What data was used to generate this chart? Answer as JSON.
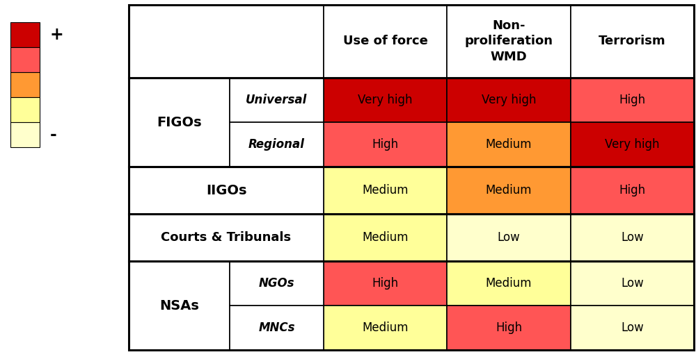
{
  "color_very_high": "#CC0000",
  "color_high": "#FF5555",
  "color_medium_orange": "#FF9933",
  "color_medium_yellow": "#FFFF99",
  "color_low": "#FFFFCC",
  "color_white": "#FFFFFF",
  "legend_colors": [
    "#CC0000",
    "#FF5555",
    "#FF9933",
    "#FFFF99",
    "#FFFFCC"
  ],
  "col_headers": [
    "Use of force",
    "Non-\nproliferation\nWMD",
    "Terrorism"
  ],
  "row_groups": [
    {
      "group_label": "FIGOs",
      "rows": [
        {
          "sub_label": "Universal",
          "values": [
            "Very high",
            "Very high",
            "High"
          ],
          "colors": [
            "#CC0000",
            "#CC0000",
            "#FF5555"
          ]
        },
        {
          "sub_label": "Regional",
          "values": [
            "High",
            "Medium",
            "Very high"
          ],
          "colors": [
            "#FF5555",
            "#FF9933",
            "#CC0000"
          ]
        }
      ]
    },
    {
      "group_label": "IIGOs",
      "rows": [
        {
          "sub_label": "",
          "values": [
            "Medium",
            "Medium",
            "High"
          ],
          "colors": [
            "#FFFF99",
            "#FF9933",
            "#FF5555"
          ]
        }
      ]
    },
    {
      "group_label": "Courts & Tribunals",
      "rows": [
        {
          "sub_label": "",
          "values": [
            "Medium",
            "Low",
            "Low"
          ],
          "colors": [
            "#FFFF99",
            "#FFFFCC",
            "#FFFFCC"
          ]
        }
      ]
    },
    {
      "group_label": "NSAs",
      "rows": [
        {
          "sub_label": "NGOs",
          "values": [
            "High",
            "Medium",
            "Low"
          ],
          "colors": [
            "#FF5555",
            "#FFFF99",
            "#FFFFCC"
          ]
        },
        {
          "sub_label": "MNCs",
          "values": [
            "Medium",
            "High",
            "Low"
          ],
          "colors": [
            "#FFFF99",
            "#FF5555",
            "#FFFFCC"
          ]
        }
      ]
    }
  ]
}
